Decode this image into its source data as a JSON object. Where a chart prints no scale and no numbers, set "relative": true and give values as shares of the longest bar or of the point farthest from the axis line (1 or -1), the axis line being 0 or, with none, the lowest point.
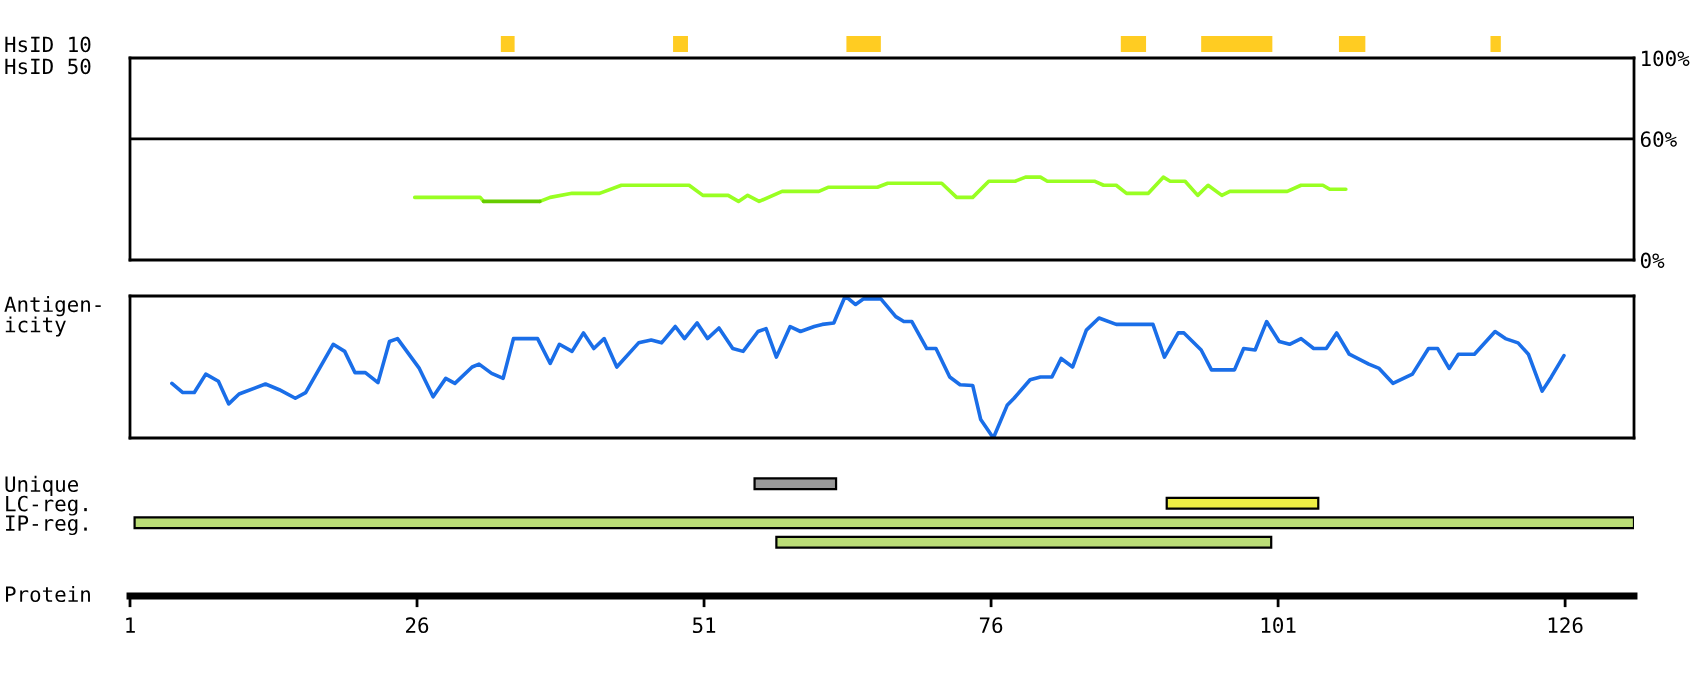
{
  "chart_data": [
    {
      "type": "bar",
      "orientation": "horizontal",
      "categories": [
        "HsID 10"
      ],
      "xlim": [
        1,
        132
      ],
      "tick_labels": "y",
      "series": [
        {
          "color": "#ffcc22",
          "values": [
            1.2
          ],
          "base": [
            33.3
          ]
        },
        {
          "color": "#ffcc22",
          "values": [
            1.3
          ],
          "base": [
            48.3
          ]
        },
        {
          "color": "#ffcc22",
          "values": [
            3.0
          ],
          "base": [
            63.4
          ]
        },
        {
          "color": "#ffcc22",
          "values": [
            2.2
          ],
          "base": [
            87.3
          ]
        },
        {
          "color": "#ffcc22",
          "values": [
            6.2
          ],
          "base": [
            94.3
          ]
        },
        {
          "color": "#ffcc22",
          "values": [
            2.3
          ],
          "base": [
            106.3
          ]
        },
        {
          "color": "#ffcc22",
          "values": [
            0.9
          ],
          "base": [
            119.5
          ]
        }
      ]
    },
    {
      "type": "line",
      "ylabel": "HsID 50",
      "xlim": [
        1,
        132
      ],
      "ylim": [
        0,
        100
      ],
      "tick_labels": "y",
      "yticks": [
        {
          "value": 0,
          "label": "0%"
        },
        {
          "value": 60,
          "label": "60%"
        },
        {
          "value": 100,
          "label": "100%"
        }
      ],
      "ref_lines": [
        {
          "axis": "y",
          "value": 60,
          "color": "#000000"
        }
      ],
      "series": [
        {
          "color": "#99ff22",
          "x": [
            25.8,
            31.5,
            31.8,
            34,
            36.7,
            37.6,
            39.5,
            41.9,
            43.8,
            49.7,
            50.9,
            53.1,
            54.0,
            54.8,
            55.8,
            57.8,
            61.0,
            61.8,
            66.1,
            67.0,
            71.7,
            73.0,
            74.4,
            75.8,
            78.1,
            79.0,
            80.3,
            80.9,
            85.0,
            85.8,
            86.9,
            87.8,
            89.7,
            91.0,
            91.6,
            92.9,
            94.0,
            94.9,
            96.1,
            96.8,
            101.8,
            103.0,
            104.9,
            105.5,
            106.9
          ],
          "values": [
            31,
            31,
            29,
            null,
            29,
            31,
            33,
            33,
            37,
            37,
            32,
            32,
            29,
            32,
            29,
            34,
            34,
            36,
            36,
            38,
            38,
            31,
            31,
            39,
            39,
            41,
            41,
            39,
            39,
            37,
            37,
            33,
            33,
            41,
            39,
            39,
            32,
            37,
            32,
            34,
            34,
            37,
            37,
            35,
            35
          ]
        },
        {
          "color": "#66cc00",
          "x": [
            31.8,
            36.7
          ],
          "values": [
            29,
            29
          ]
        }
      ]
    },
    {
      "type": "line",
      "ylabel": "Antigen-\nicity",
      "relative": true,
      "xlim": [
        1,
        132
      ],
      "series": [
        {
          "color": "#1a6ee8",
          "x": [
            4.65,
            5.6,
            6.6,
            7.6,
            8.7,
            9.6,
            10.5,
            12.8,
            14.0,
            15.4,
            16.3,
            18.7,
            19.7,
            20.6,
            21.5,
            22.6,
            23.6,
            24.3,
            26.2,
            27.4,
            28.5,
            29.3,
            30.8,
            31.4,
            32.5,
            33.5,
            34.4,
            36.5,
            37.6,
            38.4,
            39.5,
            40.5,
            41.4,
            42.3,
            43.4,
            45.3,
            46.4,
            47.3,
            48.5,
            49.3,
            50.4,
            51.3,
            52.3,
            53.5,
            54.4,
            55.7,
            56.4,
            57.3,
            58.5,
            59.4,
            60.6,
            61.3,
            62.3,
            63.3,
            64.2,
            64.9,
            66.4,
            67.7,
            68.4,
            69.1,
            70.4,
            71.2,
            72.4,
            73.3,
            74.4,
            75.1,
            76.2,
            77.4,
            78.0,
            79.4,
            80.3,
            81.3,
            82.1,
            83.1,
            84.3,
            85.4,
            86.9,
            90.1,
            91.1,
            92.3,
            92.8,
            94.3,
            95.2,
            97.2,
            98.0,
            99.0,
            100.0,
            101.1,
            102.0,
            103.0,
            104.1,
            105.2,
            106.1,
            107.2,
            108.9,
            109.8,
            111.0,
            112.7,
            114.1,
            114.9,
            115.9,
            116.7,
            118.1,
            119.9,
            120.8,
            121.9,
            122.8,
            124.0,
            124.8,
            125.9
          ],
          "values": [
            0.385,
            0.32,
            0.32,
            0.45,
            0.4,
            0.24,
            0.31,
            0.38,
            0.34,
            0.28,
            0.32,
            0.66,
            0.61,
            0.46,
            0.46,
            0.39,
            0.68,
            0.7,
            0.49,
            0.29,
            0.42,
            0.385,
            0.5,
            0.52,
            0.455,
            0.42,
            0.7,
            0.7,
            0.525,
            0.66,
            0.61,
            0.74,
            0.63,
            0.7,
            0.5,
            0.67,
            0.69,
            0.67,
            0.785,
            0.7,
            0.81,
            0.7,
            0.775,
            0.63,
            0.61,
            0.75,
            0.77,
            0.57,
            0.785,
            0.75,
            0.785,
            0.8,
            0.81,
            1.0,
            0.94,
            0.98,
            0.98,
            0.855,
            0.82,
            0.82,
            0.63,
            0.63,
            0.43,
            0.375,
            0.37,
            0.13,
            0.0,
            0.23,
            0.28,
            0.41,
            0.43,
            0.43,
            0.56,
            0.5,
            0.76,
            0.845,
            0.8,
            0.8,
            0.57,
            0.74,
            0.74,
            0.62,
            0.48,
            0.48,
            0.63,
            0.62,
            0.82,
            0.68,
            0.66,
            0.7,
            0.63,
            0.63,
            0.74,
            0.59,
            0.52,
            0.49,
            0.385,
            0.45,
            0.63,
            0.63,
            0.49,
            0.59,
            0.59,
            0.75,
            0.7,
            0.67,
            0.59,
            0.33,
            0.43,
            0.58
          ]
        }
      ]
    },
    {
      "type": "bar",
      "orientation": "horizontal",
      "categories": [
        "Unique",
        "LC-reg.",
        "IP-reg.",
        null
      ],
      "xlabel": "Protein",
      "xlim": [
        1,
        132
      ],
      "xticks": [
        1,
        26,
        51,
        76,
        101,
        126
      ],
      "values": [
        7.1,
        13.2,
        130.6,
        43.1
      ],
      "base": [
        55.4,
        91.3,
        1.4,
        57.3
      ],
      "colors": [
        "#999999",
        "#eeee44",
        "#bbdd77",
        "#bbdd77"
      ]
    }
  ]
}
